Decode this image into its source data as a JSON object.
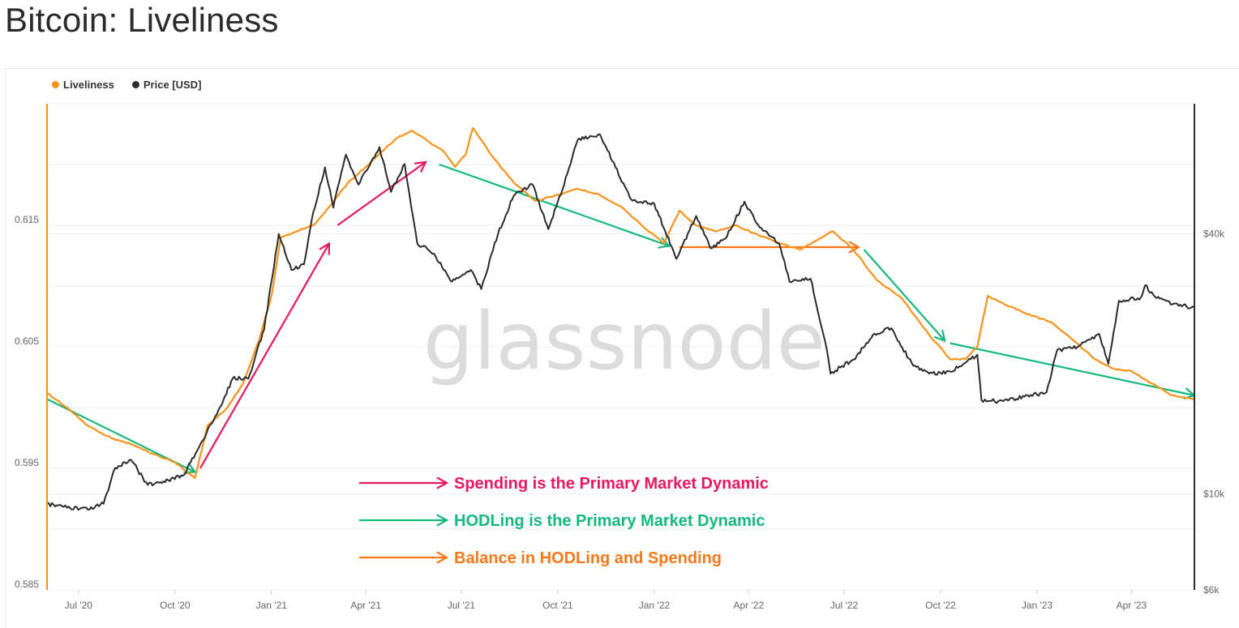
{
  "page": {
    "title": "Bitcoin: Liveliness"
  },
  "watermark": "glassnode",
  "colors": {
    "liveliness": "#f7931a",
    "price": "#2b2b2b",
    "pink": "#e8185f",
    "green": "#16b97c",
    "orange": "#f7781a",
    "grid": "#ececec"
  },
  "legend": [
    {
      "label": "Liveliness",
      "color": "#f7931a"
    },
    {
      "label": "Price [USD]",
      "color": "#2b2b2b"
    }
  ],
  "chart_data": {
    "type": "line",
    "legend_position": "top-left",
    "grid": true,
    "x_range": [
      "2020-06-01",
      "2023-05-31"
    ],
    "x_ticks": [
      {
        "date": "2020-07-01",
        "label": "Jul '20"
      },
      {
        "date": "2020-10-01",
        "label": "Oct '20"
      },
      {
        "date": "2021-01-01",
        "label": "Jan '21"
      },
      {
        "date": "2021-04-01",
        "label": "Apr '21"
      },
      {
        "date": "2021-07-01",
        "label": "Jul '21"
      },
      {
        "date": "2021-10-01",
        "label": "Oct '21"
      },
      {
        "date": "2022-01-01",
        "label": "Jan '22"
      },
      {
        "date": "2022-04-01",
        "label": "Apr '22"
      },
      {
        "date": "2022-07-01",
        "label": "Jul '22"
      },
      {
        "date": "2022-10-01",
        "label": "Oct '22"
      },
      {
        "date": "2023-01-01",
        "label": "Jan '23"
      },
      {
        "date": "2023-04-01",
        "label": "Apr '23"
      }
    ],
    "y_left": {
      "ticks": [
        0.585,
        0.595,
        0.605,
        0.615
      ],
      "labels": [
        "0.585",
        "0.595",
        "0.605",
        "0.615"
      ],
      "range": [
        0.585,
        0.625
      ]
    },
    "y_right": {
      "scale": "log",
      "ticks": [
        6000,
        10000,
        40000
      ],
      "labels": [
        "$6k",
        "$10k",
        "$40k"
      ],
      "range": [
        6000,
        80000
      ]
    },
    "series": [
      {
        "name": "Liveliness",
        "axis": "left",
        "color": "#f7931a",
        "points": [
          [
            "2020-06-01",
            0.6012
          ],
          [
            "2020-06-20",
            0.6
          ],
          [
            "2020-07-10",
            0.5985
          ],
          [
            "2020-08-01",
            0.5975
          ],
          [
            "2020-08-20",
            0.597
          ],
          [
            "2020-09-10",
            0.5962
          ],
          [
            "2020-10-01",
            0.5955
          ],
          [
            "2020-10-20",
            0.5942
          ],
          [
            "2020-11-01",
            0.5985
          ],
          [
            "2020-11-20",
            0.6
          ],
          [
            "2020-12-05",
            0.602
          ],
          [
            "2020-12-20",
            0.6055
          ],
          [
            "2021-01-01",
            0.6092
          ],
          [
            "2021-01-10",
            0.614
          ],
          [
            "2021-01-25",
            0.6145
          ],
          [
            "2021-02-10",
            0.615
          ],
          [
            "2021-02-25",
            0.6165
          ],
          [
            "2021-03-15",
            0.6185
          ],
          [
            "2021-04-01",
            0.6198
          ],
          [
            "2021-04-15",
            0.621
          ],
          [
            "2021-05-01",
            0.6222
          ],
          [
            "2021-05-15",
            0.6228
          ],
          [
            "2021-06-01",
            0.6218
          ],
          [
            "2021-06-15",
            0.621
          ],
          [
            "2021-06-25",
            0.6198
          ],
          [
            "2021-07-05",
            0.6208
          ],
          [
            "2021-07-12",
            0.623
          ],
          [
            "2021-08-01",
            0.6205
          ],
          [
            "2021-08-20",
            0.6185
          ],
          [
            "2021-09-10",
            0.617
          ],
          [
            "2021-10-01",
            0.6175
          ],
          [
            "2021-10-20",
            0.618
          ],
          [
            "2021-11-10",
            0.6175
          ],
          [
            "2021-12-01",
            0.6165
          ],
          [
            "2021-12-20",
            0.615
          ],
          [
            "2022-01-10",
            0.6135
          ],
          [
            "2022-01-25",
            0.6162
          ],
          [
            "2022-02-10",
            0.615
          ],
          [
            "2022-03-01",
            0.6145
          ],
          [
            "2022-03-20",
            0.615
          ],
          [
            "2022-04-10",
            0.6142
          ],
          [
            "2022-05-01",
            0.6135
          ],
          [
            "2022-05-20",
            0.613
          ],
          [
            "2022-06-10",
            0.614
          ],
          [
            "2022-06-20",
            0.6145
          ],
          [
            "2022-07-10",
            0.613
          ],
          [
            "2022-08-01",
            0.6105
          ],
          [
            "2022-08-25",
            0.609
          ],
          [
            "2022-09-20",
            0.606
          ],
          [
            "2022-10-10",
            0.604
          ],
          [
            "2022-10-25",
            0.604
          ],
          [
            "2022-11-05",
            0.605
          ],
          [
            "2022-11-15",
            0.6092
          ],
          [
            "2022-12-01",
            0.6085
          ],
          [
            "2022-12-20",
            0.6078
          ],
          [
            "2023-01-15",
            0.607
          ],
          [
            "2023-02-05",
            0.6055
          ],
          [
            "2023-02-25",
            0.604
          ],
          [
            "2023-03-15",
            0.6032
          ],
          [
            "2023-04-01",
            0.603
          ],
          [
            "2023-04-20",
            0.602
          ],
          [
            "2023-05-10",
            0.601
          ],
          [
            "2023-05-31",
            0.6007
          ]
        ]
      },
      {
        "name": "Price [USD]",
        "axis": "right",
        "color": "#2b2b2b",
        "points": [
          [
            "2020-06-01",
            9500
          ],
          [
            "2020-06-20",
            9300
          ],
          [
            "2020-07-10",
            9200
          ],
          [
            "2020-07-25",
            9500
          ],
          [
            "2020-08-05",
            11500
          ],
          [
            "2020-08-20",
            12000
          ],
          [
            "2020-09-05",
            10500
          ],
          [
            "2020-09-20",
            10700
          ],
          [
            "2020-10-10",
            11100
          ],
          [
            "2020-10-25",
            13000
          ],
          [
            "2020-11-10",
            15300
          ],
          [
            "2020-11-25",
            18500
          ],
          [
            "2020-12-10",
            18500
          ],
          [
            "2020-12-25",
            24000
          ],
          [
            "2021-01-08",
            40000
          ],
          [
            "2021-01-20",
            33000
          ],
          [
            "2021-02-01",
            34000
          ],
          [
            "2021-02-10",
            45000
          ],
          [
            "2021-02-21",
            57000
          ],
          [
            "2021-03-01",
            46000
          ],
          [
            "2021-03-13",
            61000
          ],
          [
            "2021-03-25",
            52000
          ],
          [
            "2021-04-14",
            63500
          ],
          [
            "2021-04-25",
            50000
          ],
          [
            "2021-05-08",
            58000
          ],
          [
            "2021-05-20",
            38000
          ],
          [
            "2021-06-05",
            36000
          ],
          [
            "2021-06-22",
            31000
          ],
          [
            "2021-07-10",
            33000
          ],
          [
            "2021-07-20",
            29800
          ],
          [
            "2021-08-05",
            40000
          ],
          [
            "2021-08-20",
            49000
          ],
          [
            "2021-09-07",
            52000
          ],
          [
            "2021-09-22",
            41000
          ],
          [
            "2021-10-10",
            55000
          ],
          [
            "2021-10-20",
            66000
          ],
          [
            "2021-11-10",
            68000
          ],
          [
            "2021-11-25",
            57000
          ],
          [
            "2021-12-10",
            48000
          ],
          [
            "2022-01-01",
            47000
          ],
          [
            "2022-01-22",
            35000
          ],
          [
            "2022-02-10",
            44000
          ],
          [
            "2022-02-24",
            37000
          ],
          [
            "2022-03-10",
            39000
          ],
          [
            "2022-03-28",
            47500
          ],
          [
            "2022-04-10",
            42000
          ],
          [
            "2022-04-30",
            38000
          ],
          [
            "2022-05-10",
            31000
          ],
          [
            "2022-05-30",
            31500
          ],
          [
            "2022-06-13",
            22500
          ],
          [
            "2022-06-18",
            19000
          ],
          [
            "2022-07-10",
            20500
          ],
          [
            "2022-07-30",
            23500
          ],
          [
            "2022-08-15",
            24200
          ],
          [
            "2022-09-05",
            19800
          ],
          [
            "2022-09-20",
            19000
          ],
          [
            "2022-10-10",
            19200
          ],
          [
            "2022-11-05",
            21000
          ],
          [
            "2022-11-09",
            16500
          ],
          [
            "2022-11-25",
            16400
          ],
          [
            "2022-12-20",
            16800
          ],
          [
            "2023-01-10",
            17200
          ],
          [
            "2023-01-20",
            21500
          ],
          [
            "2023-02-10",
            22000
          ],
          [
            "2023-03-01",
            23500
          ],
          [
            "2023-03-10",
            20000
          ],
          [
            "2023-03-20",
            28000
          ],
          [
            "2023-04-10",
            28500
          ],
          [
            "2023-04-14",
            30400
          ],
          [
            "2023-04-25",
            28400
          ],
          [
            "2023-05-10",
            27500
          ],
          [
            "2023-05-31",
            27000
          ]
        ]
      }
    ],
    "annotations": [
      {
        "text": "Spending is the Primary Market Dynamic",
        "color": "#e8185f"
      },
      {
        "text": "HODLing is the Primary Market Dynamic",
        "color": "#16b97c"
      },
      {
        "text": "Balance in HODLing and Spending",
        "color": "#f7781a"
      }
    ],
    "trend_arrows": [
      {
        "color": "green",
        "from": [
          "2020-06-01",
          0.6007
        ],
        "to": [
          "2020-10-20",
          0.5947
        ]
      },
      {
        "color": "pink",
        "from": [
          "2020-10-25",
          0.595
        ],
        "to": [
          "2021-02-25",
          0.6135
        ]
      },
      {
        "color": "pink",
        "from": [
          "2021-03-05",
          0.615
        ],
        "to": [
          "2021-05-28",
          0.6202
        ]
      },
      {
        "color": "green",
        "from": [
          "2021-06-10",
          0.62
        ],
        "to": [
          "2022-01-15",
          0.6133
        ]
      },
      {
        "color": "orange",
        "from": [
          "2022-01-25",
          0.6132
        ],
        "to": [
          "2022-07-15",
          0.6132
        ]
      },
      {
        "color": "green",
        "from": [
          "2022-07-20",
          0.613
        ],
        "to": [
          "2022-10-05",
          0.6055
        ]
      },
      {
        "color": "green",
        "from": [
          "2022-10-10",
          0.6053
        ],
        "to": [
          "2023-05-31",
          0.601
        ]
      }
    ]
  }
}
